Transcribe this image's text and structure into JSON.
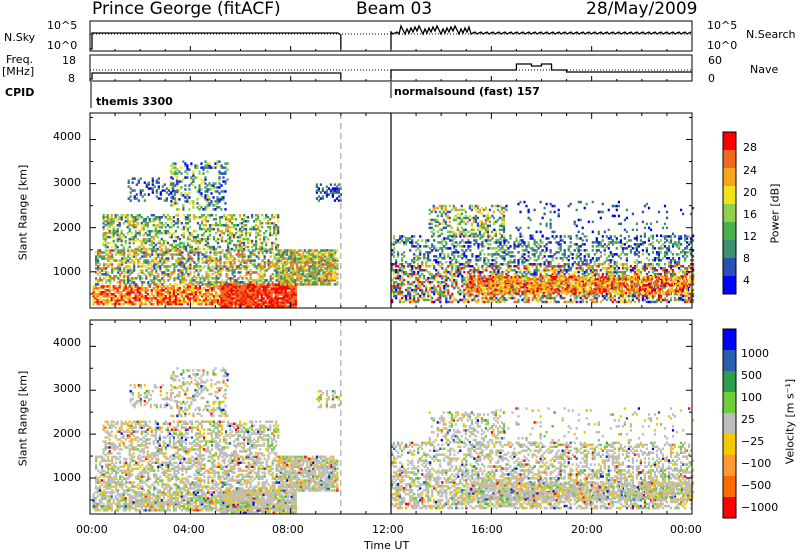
{
  "header": {
    "station": "Prince George (fitACF)",
    "beam": "Beam 03",
    "date": "28/May/2009"
  },
  "side_labels": {
    "nsky": "N.Sky",
    "freq": "Freq.",
    "mhz": "[MHz]",
    "cpid": "CPID",
    "nsearch": "N.Search",
    "nave": "Nave"
  },
  "colors": {
    "power": [
      "#0000ff",
      "#2b4fb3",
      "#3d8f6d",
      "#4caf50",
      "#8fd14f",
      "#f2e21b",
      "#f7a51e",
      "#f06a1e",
      "#ff0000"
    ],
    "velocity": [
      "#ff0000",
      "#ff6a00",
      "#ff9933",
      "#f5c800",
      "#bdbdbd",
      "#6ccf3a",
      "#2f9e4a",
      "#2a5fb0",
      "#0000ff"
    ]
  },
  "chart_data": [
    {
      "type": "line",
      "title": "",
      "ylabel": "N.Sky",
      "yticks": [
        "10^5",
        "10^0"
      ],
      "right_label": "N.Search",
      "right_yticks": [
        "10^5",
        "10^0"
      ],
      "x": [
        "00:00",
        "04:00",
        "08:00",
        "12:00",
        "16:00",
        "20:00",
        "00:00"
      ]
    },
    {
      "type": "line",
      "title": "",
      "ylabel": "Freq. [MHz]",
      "yticks": [
        "18",
        "8"
      ],
      "right_label": "Nave",
      "right_yticks": [
        "60",
        "0"
      ],
      "cpid_segments": [
        {
          "start": "00:00",
          "end": "10:00",
          "label": "themis 3300"
        },
        {
          "start": "12:00",
          "end": "24:00",
          "label": "normalsound (fast) 157"
        }
      ]
    },
    {
      "type": "heatmap",
      "title": "",
      "ylabel": "Slant Range [km]",
      "ylim": [
        180,
        4600
      ],
      "yticks": [
        "1000",
        "2000",
        "3000",
        "4000"
      ],
      "xticks": [
        "00:00",
        "04:00",
        "08:00",
        "12:00",
        "16:00",
        "20:00",
        "00:00"
      ],
      "colorbar_label": "Power [dB]",
      "colorbar_ticks": [
        "4",
        "8",
        "12",
        "16",
        "20",
        "24",
        "28"
      ],
      "gap": [
        "10:00",
        "12:00"
      ]
    },
    {
      "type": "heatmap",
      "title": "",
      "ylabel": "Slant Range [km]",
      "ylim": [
        180,
        4600
      ],
      "yticks": [
        "1000",
        "2000",
        "3000",
        "4000"
      ],
      "xticks": [
        "00:00",
        "04:00",
        "08:00",
        "12:00",
        "16:00",
        "20:00",
        "00:00"
      ],
      "xlabel": "Time UT",
      "colorbar_label": "Velocity [m s⁻¹]",
      "colorbar_ticks": [
        "1000",
        "500",
        "100",
        "25",
        "−25",
        "−100",
        "−500",
        "−1000"
      ],
      "gap": [
        "10:00",
        "12:00"
      ]
    }
  ]
}
